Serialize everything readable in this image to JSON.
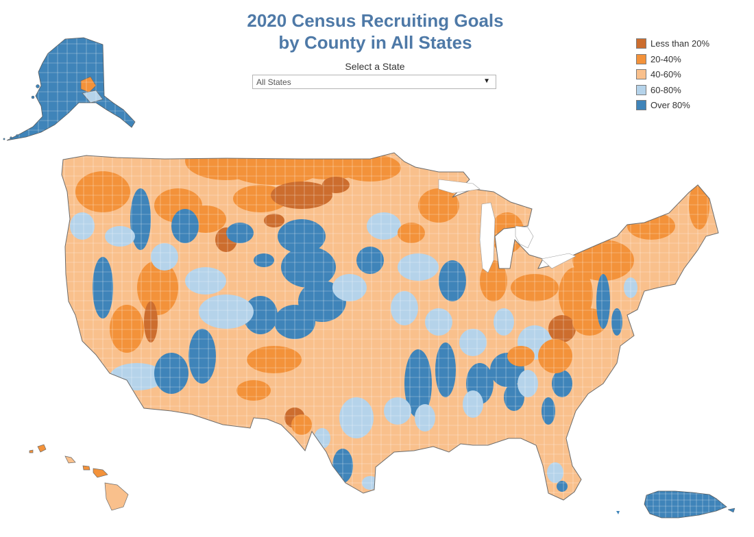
{
  "title_line1": "2020 Census Recruiting Goals",
  "title_line2": "by County in All States",
  "state_selector": {
    "label": "Select a State",
    "selected": "All States"
  },
  "legend": [
    {
      "label": "Less than 20%",
      "color": "#cc6d2e"
    },
    {
      "label": "20-40%",
      "color": "#f3923a"
    },
    {
      "label": "40-60%",
      "color": "#f9c08c"
    },
    {
      "label": "60-80%",
      "color": "#b5d3ea"
    },
    {
      "label": "Over 80%",
      "color": "#3f84b9"
    }
  ],
  "icons": {
    "dropdown": "chevron-down-icon"
  }
}
